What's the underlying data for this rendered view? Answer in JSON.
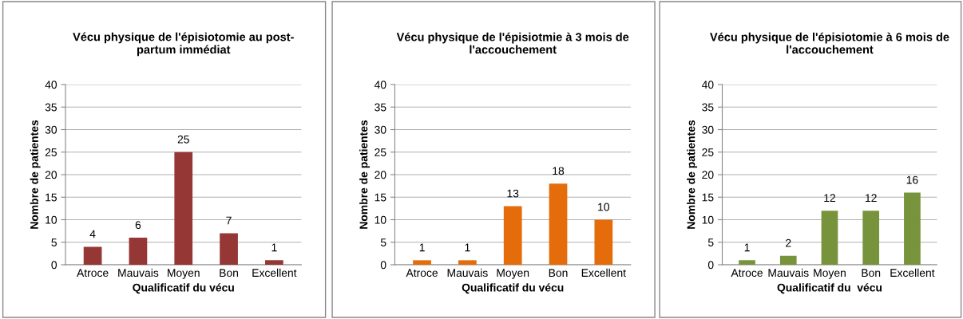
{
  "chart_data": [
    {
      "type": "bar",
      "title": "Vécu physique de l'épisiotomie au post-\npartum immédiat",
      "xlabel": "Qualificatif du vécu",
      "ylabel": "Nombre de patientes",
      "categories": [
        "Atroce",
        "Mauvais",
        "Moyen",
        "Bon",
        "Excellent"
      ],
      "values": [
        4,
        6,
        25,
        7,
        1
      ],
      "color": "#953735",
      "ylim": [
        0,
        40
      ],
      "yticks": [
        0,
        5,
        10,
        15,
        20,
        25,
        30,
        35,
        40
      ],
      "grid": "y",
      "data_labels": true,
      "legend": false
    },
    {
      "type": "bar",
      "title": "Vécu physique de l'épisiotmie à 3 mois de\nl'accouchement",
      "xlabel": "Qualificatif du vécu",
      "ylabel": "Nombre de patientes",
      "categories": [
        "Atroce",
        "Mauvais",
        "Moyen",
        "Bon",
        "Excellent"
      ],
      "values": [
        1,
        1,
        13,
        18,
        10
      ],
      "color": "#e46c0a",
      "ylim": [
        0,
        40
      ],
      "yticks": [
        0,
        5,
        10,
        15,
        20,
        25,
        30,
        35,
        40
      ],
      "grid": "y",
      "data_labels": true,
      "legend": false
    },
    {
      "type": "bar",
      "title": "Vécu physique de l'épisiotomie à 6 mois de\nl'accouchement",
      "xlabel": "Qualificatif du  vécu",
      "ylabel": "Nombre de patientes",
      "categories": [
        "Atroce",
        "Mauvais",
        "Moyen",
        "Bon",
        "Excellent"
      ],
      "values": [
        1,
        2,
        12,
        12,
        16
      ],
      "color": "#77933c",
      "ylim": [
        0,
        40
      ],
      "yticks": [
        0,
        5,
        10,
        15,
        20,
        25,
        30,
        35,
        40
      ],
      "grid": "y",
      "data_labels": true,
      "legend": false
    }
  ]
}
